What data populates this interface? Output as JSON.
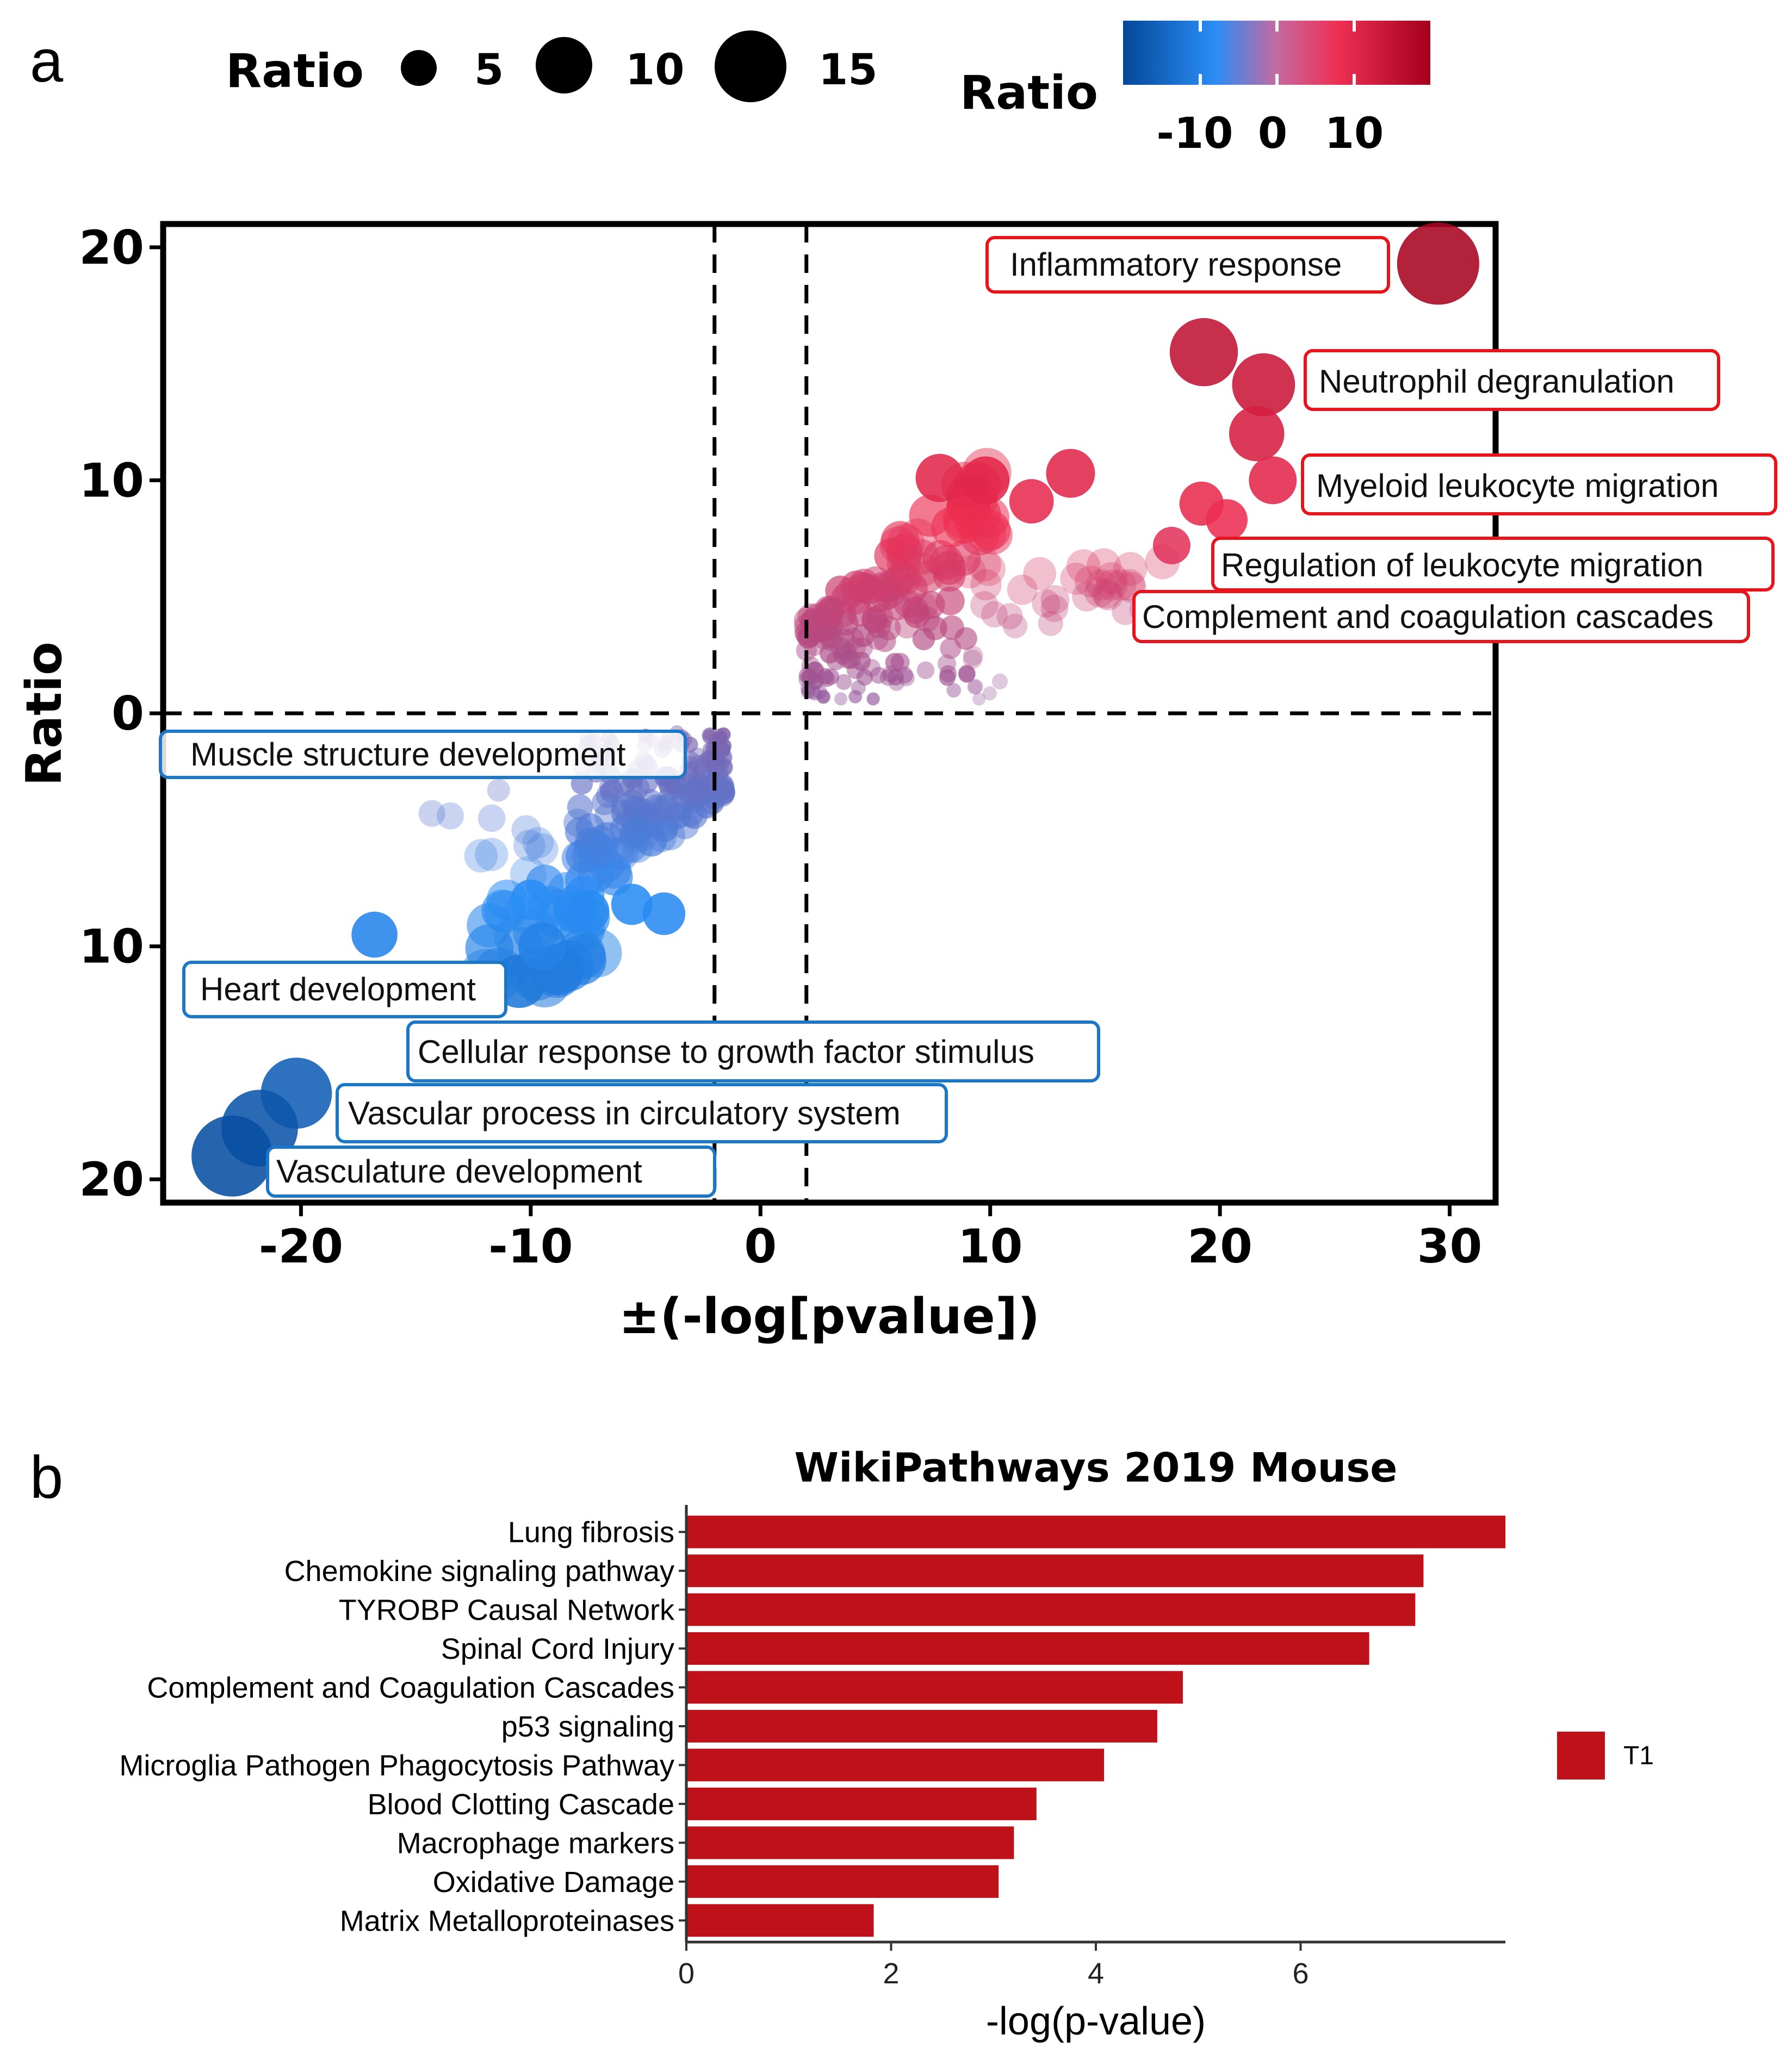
{
  "chart_data": [
    {
      "panel": "a",
      "type": "scatter",
      "title": "",
      "xlabel": "±(-log[pvalue])",
      "ylabel": "Ratio",
      "xlim": [
        -26,
        32
      ],
      "ylim": [
        -21,
        21
      ],
      "xticks": [
        -20,
        -10,
        0,
        10,
        20,
        30
      ],
      "xtick_labels": [
        "-20",
        "-10",
        "0",
        "10",
        "20",
        "30"
      ],
      "yticks": [
        20,
        10,
        0,
        -10,
        -20
      ],
      "ytick_labels": [
        "20",
        "10",
        "0",
        "10",
        "20"
      ],
      "thresholds": {
        "x": [
          -2,
          2
        ],
        "y": 0
      },
      "size_legend": {
        "title": "Ratio",
        "values": [
          5,
          10,
          15
        ],
        "labels": [
          "5",
          "10",
          "15"
        ]
      },
      "color_legend": {
        "title": "Ratio",
        "range": [
          -20,
          20
        ],
        "ticks": [
          -10,
          0,
          10
        ],
        "labels": [
          "-10",
          "0",
          "10"
        ],
        "colors": [
          "#05489a",
          "#2a8df5",
          "#ee2f53",
          "#a3001d"
        ]
      },
      "highlights": [
        {
          "x": 29.5,
          "y": 19.3
        },
        {
          "x": 19.3,
          "y": 15.5
        },
        {
          "x": 21.9,
          "y": 14.1
        },
        {
          "x": 21.6,
          "y": 12.0
        },
        {
          "x": 22.3,
          "y": 10.0
        },
        {
          "x": 13.5,
          "y": 10.3
        },
        {
          "x": 9.8,
          "y": 10.0
        },
        {
          "x": 7.8,
          "y": 10.1
        },
        {
          "x": 11.8,
          "y": 9.1
        },
        {
          "x": 19.2,
          "y": 9.0
        },
        {
          "x": 20.3,
          "y": 8.3
        },
        {
          "x": 17.9,
          "y": 7.2
        },
        {
          "x": 17.5,
          "y": 6.5
        },
        {
          "x": 16.1,
          "y": 6.2
        },
        {
          "x": 15.3,
          "y": 5.5
        },
        {
          "x": 14.2,
          "y": 5.0
        },
        {
          "x": 12.8,
          "y": 4.5
        },
        {
          "x": -16.8,
          "y": -9.5
        },
        {
          "x": -10.2,
          "y": -5.0
        },
        {
          "x": -11.7,
          "y": -4.5
        },
        {
          "x": -13.5,
          "y": -4.4
        },
        {
          "x": -14.3,
          "y": -4.3
        },
        {
          "x": -11.4,
          "y": -3.3
        },
        {
          "x": -20.2,
          "y": -16.3
        },
        {
          "x": -21.8,
          "y": -17.8
        },
        {
          "x": -23.0,
          "y": -19.0
        },
        {
          "x": -10.5,
          "y": -11.5
        },
        {
          "x": -8.8,
          "y": -11.0
        },
        {
          "x": -9.5,
          "y": -10.0
        },
        {
          "x": -10.0,
          "y": -8.0
        },
        {
          "x": -7.5,
          "y": -8.5
        },
        {
          "x": -5.6,
          "y": -8.2
        },
        {
          "x": -4.2,
          "y": -8.6
        }
      ],
      "clusters": [
        {
          "name": "positive-dense",
          "x": [
            2,
            10.5
          ],
          "y": [
            0.6,
            10.8
          ],
          "count": 170
        },
        {
          "name": "positive-tail",
          "x": [
            10,
            17
          ],
          "y": [
            3.6,
            6.4
          ],
          "count": 22
        },
        {
          "name": "negative-dense",
          "x": [
            -8,
            -1.6
          ],
          "y": [
            -8,
            -0.8
          ],
          "count": 170
        },
        {
          "name": "negative-mid",
          "x": [
            -12.5,
            -7
          ],
          "y": [
            -11.5,
            -5.5
          ],
          "count": 35
        }
      ],
      "annotations": [
        {
          "text": "Inflammatory response",
          "group": "up"
        },
        {
          "text": "Neutrophil degranulation",
          "group": "up"
        },
        {
          "text": "Myeloid leukocyte migration",
          "group": "up"
        },
        {
          "text": "Regulation of leukocyte migration",
          "group": "up"
        },
        {
          "text": "Complement and coagulation cascades",
          "group": "up"
        },
        {
          "text": "Muscle structure development",
          "group": "down"
        },
        {
          "text": "Heart development",
          "group": "down"
        },
        {
          "text": "Cellular response to growth factor stimulus",
          "group": "down"
        },
        {
          "text": "Vascular process in circulatory system",
          "group": "down"
        },
        {
          "text": "Vasculature development",
          "group": "down"
        }
      ]
    },
    {
      "panel": "b",
      "type": "bar",
      "orientation": "horizontal",
      "title": "WikiPathways 2019 Mouse",
      "xlabel": "-log(p-value)",
      "ylabel": "",
      "xlim": [
        0,
        8
      ],
      "xticks": [
        0,
        2,
        4,
        6
      ],
      "xtick_labels": [
        "0",
        "2",
        "4",
        "6"
      ],
      "categories": [
        "Lung fibrosis",
        "Chemokine signaling pathway",
        "TYROBP Causal Network",
        "Spinal Cord Injury",
        "Complement and Coagulation Cascades",
        "p53 signaling",
        "Microglia Pathogen Phagocytosis Pathway",
        "Blood Clotting Cascade",
        "Macrophage markers",
        "Oxidative Damage",
        "Matrix Metalloproteinases"
      ],
      "series": [
        {
          "name": "T1",
          "color": "#bf1119",
          "values": [
            8.0,
            7.2,
            7.12,
            6.67,
            4.85,
            4.6,
            4.08,
            3.42,
            3.2,
            3.05,
            1.83
          ]
        }
      ],
      "legend": {
        "entries": [
          "T1"
        ],
        "position": "right"
      }
    }
  ],
  "panels": {
    "a_letter": "a",
    "b_letter": "b"
  }
}
